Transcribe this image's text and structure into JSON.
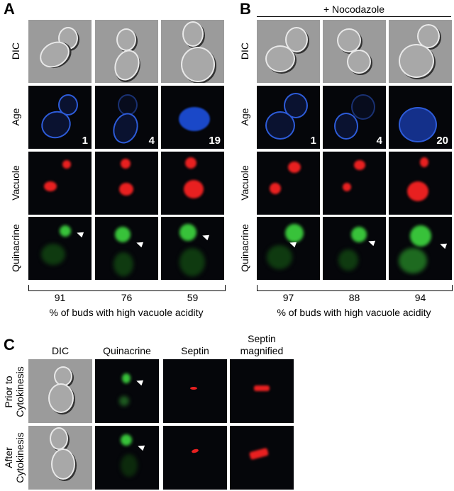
{
  "panels": {
    "A": {
      "label": "A",
      "row_labels": [
        "DIC",
        "Age",
        "Vacuole",
        "Quinacrine"
      ],
      "ages": [
        "1",
        "4",
        "19"
      ],
      "percentages": [
        "91",
        "76",
        "59"
      ],
      "caption": "% of buds with high vacuole acidity"
    },
    "B": {
      "label": "B",
      "treatment": "+ Nocodazole",
      "row_labels": [
        "DIC",
        "Age",
        "Vacuole",
        "Quinacrine"
      ],
      "ages": [
        "1",
        "4",
        "20"
      ],
      "percentages": [
        "97",
        "88",
        "94"
      ],
      "caption": "% of buds with high vacuole acidity"
    },
    "C": {
      "label": "C",
      "column_headers": [
        "DIC",
        "Quinacrine",
        "Septin",
        "Septin magnified"
      ],
      "row_labels": [
        "Prior to Cytokinesis",
        "After Cytokinesis"
      ]
    }
  },
  "colors": {
    "dic": "#9b9b9b",
    "age_stain": "#2d5bd8",
    "vacuole": "#e82020",
    "quinacrine": "#38c23a",
    "septin": "#e82020"
  }
}
